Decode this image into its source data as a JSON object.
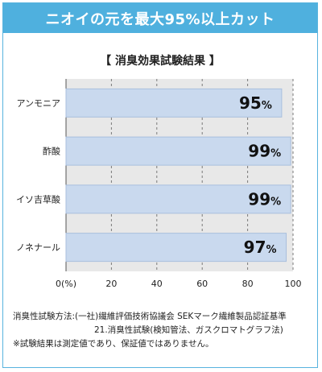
{
  "banner": {
    "title": "ニオイの元を最大95%以上カット"
  },
  "chart_data": {
    "type": "bar",
    "orientation": "horizontal",
    "title": "【 消臭効果試験結果 】",
    "categories": [
      "アンモニア",
      "酢酸",
      "イソ吉草酸",
      "ノネナール"
    ],
    "values": [
      95,
      99,
      99,
      97
    ],
    "value_suffix": "%",
    "xlim": [
      0,
      100
    ],
    "x_ticks": [
      0,
      20,
      40,
      60,
      80,
      100
    ],
    "x_tick_labels": [
      "0(%)",
      "20",
      "40",
      "60",
      "80",
      "100"
    ],
    "grid": "vertical dashed",
    "colors": {
      "bar": "#c9d9ee",
      "bar_border": "#a9bfdd",
      "panel": "#e8e8e8",
      "grid": "#7a7a7a"
    }
  },
  "notes": {
    "line1": "消臭性試験方法:(一社)繊維評価技術協議会 SEKマーク繊維製品認証基準",
    "line2": "21.消臭性試験(検知管法、ガスクロマトグラフ法)",
    "line3": "※試験結果は測定値であり、保証値ではありません。"
  },
  "colors": {
    "accent": "#4fb0de"
  }
}
